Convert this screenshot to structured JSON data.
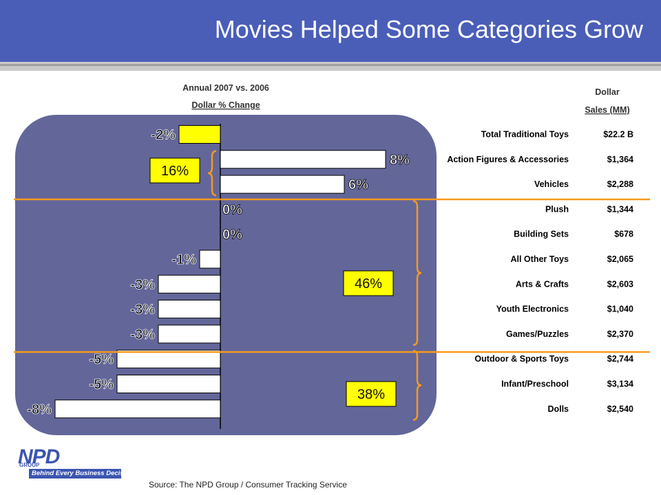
{
  "title": "Movies Helped Some Categories Grow",
  "source": "Source:  The NPD Group / Consumer Tracking Service",
  "logo": {
    "word": "NPD",
    "group": "GROUP",
    "tagline": "Behind Every Business Decision"
  },
  "colors": {
    "header": "#4a5eb8",
    "panel": "#636699",
    "bar_highlight": "#ffff00",
    "bar_default": "#ffffff",
    "divider": "#f59a1c",
    "share_box": "#ffff00"
  },
  "chart_data": {
    "type": "bar",
    "orientation": "horizontal",
    "title": "Annual 2007 vs. 2006",
    "subtitle": "Dollar % Change",
    "sales_header_line1": "Dollar",
    "sales_header_line2": "Sales (MM)",
    "categories": [
      "Total Traditional Toys",
      "Action Figures & Accessories",
      "Vehicles",
      "Plush",
      "Building Sets",
      "All Other Toys",
      "Arts & Crafts",
      "Youth Electronics",
      "Games/Puzzles",
      "Outdoor & Sports Toys",
      "Infant/Preschool",
      "Dolls"
    ],
    "values": [
      -2,
      8,
      6,
      0,
      0,
      -1,
      -3,
      -3,
      -3,
      -5,
      -5,
      -8
    ],
    "value_labels": [
      "-2%",
      "8%",
      "6%",
      "0%",
      "0%",
      "-1%",
      "-3%",
      "-3%",
      "-3%",
      "-5%",
      "-5%",
      "-8%"
    ],
    "sales": [
      "$22.2 B",
      "$1,364",
      "$2,288",
      "$1,344",
      "$678",
      "$2,065",
      "$2,603",
      "$1,040",
      "$2,370",
      "$2,744",
      "$3,134",
      "$2,540"
    ],
    "highlighted": [
      true,
      false,
      false,
      false,
      false,
      false,
      false,
      false,
      false,
      false,
      false,
      false
    ],
    "groups": [
      {
        "share": "16%",
        "first": 1,
        "last": 2
      },
      {
        "share": "46%",
        "first": 3,
        "last": 8
      },
      {
        "share": "38%",
        "first": 9,
        "last": 11
      }
    ],
    "xlim": [
      -8,
      8
    ]
  }
}
